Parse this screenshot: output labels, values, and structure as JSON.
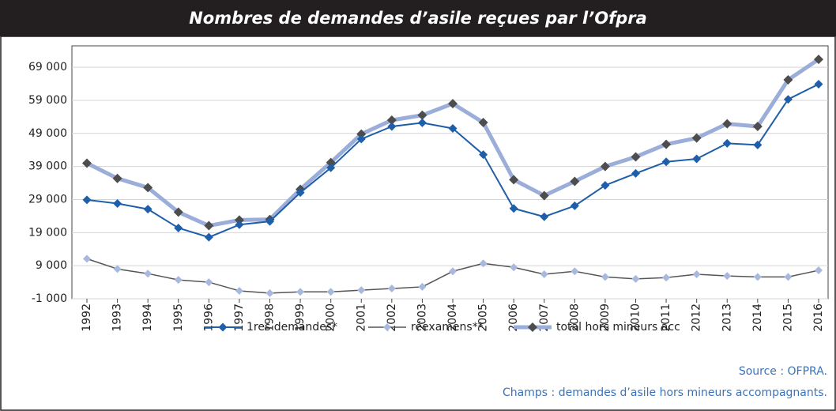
{
  "chart_data": {
    "type": "line",
    "title": "Nombres de demandes d’asile reçues par l’Ofpra",
    "categories": [
      "1992",
      "1993",
      "1994",
      "1995",
      "1996",
      "1997",
      "1998",
      "1999",
      "2000",
      "2001",
      "2002",
      "2003",
      "2004",
      "2005",
      "2006",
      "2007",
      "2008",
      "2009",
      "2010",
      "2011",
      "2012",
      "2013",
      "2014",
      "2015",
      "2016"
    ],
    "series": [
      {
        "name": "1res demandes*",
        "color": "#1f5ea8",
        "marker_color": "#1f5ea8",
        "values": [
          28900,
          27800,
          26100,
          20400,
          17600,
          21400,
          22400,
          31100,
          38600,
          47300,
          51100,
          52200,
          50500,
          42600,
          26300,
          23800,
          27100,
          33300,
          36900,
          40400,
          41300,
          46000,
          45500,
          59300,
          63900
        ]
      },
      {
        "name": "réexamens**",
        "color": "#555555",
        "marker_color": "#a9b9de",
        "values": [
          11100,
          8000,
          6600,
          4700,
          4000,
          1400,
          700,
          1100,
          1100,
          1600,
          2100,
          2600,
          7300,
          9700,
          8500,
          6400,
          7300,
          5600,
          5000,
          5400,
          6400,
          5900,
          5600,
          5600,
          7600
        ]
      },
      {
        "name": "total hors mineurs acc",
        "color": "#9badd9",
        "marker_color": "#4d4d4d",
        "values": [
          40000,
          35400,
          32600,
          25200,
          21100,
          22800,
          23000,
          32100,
          40200,
          48800,
          53000,
          54500,
          58000,
          52300,
          35000,
          30200,
          34500,
          39000,
          41900,
          45700,
          47600,
          51900,
          51100,
          65200,
          71400
        ]
      }
    ],
    "ylim": [
      -1000,
      75000
    ],
    "yticks": [
      {
        "value": -1000,
        "label": "-1 000"
      },
      {
        "value": 9000,
        "label": "9 000"
      },
      {
        "value": 19000,
        "label": "19 000"
      },
      {
        "value": 29000,
        "label": "29 000"
      },
      {
        "value": 39000,
        "label": "39 000"
      },
      {
        "value": 49000,
        "label": "49 000"
      },
      {
        "value": 59000,
        "label": "59 000"
      },
      {
        "value": 69000,
        "label": "69 000"
      }
    ],
    "grid": true,
    "legend": "bottom",
    "source": "Source : OFPRA.",
    "note": "Champs : demandes d’asile hors mineurs accompagnants."
  }
}
